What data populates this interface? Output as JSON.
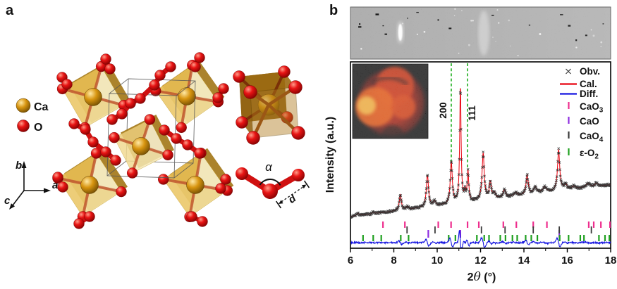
{
  "figure": {
    "panel_a_label": "a",
    "panel_b_label": "b"
  },
  "panel_a": {
    "legend": [
      {
        "name": "Ca",
        "color": "#c8860a"
      },
      {
        "name": "O",
        "color": "#e01010"
      }
    ],
    "axis_labels": {
      "up": "b",
      "right": "a",
      "front": "c"
    },
    "molecule_labels": {
      "angle": "α",
      "bond_length": "d"
    }
  },
  "panel_b": {
    "y_axis_label": "Intensity (a.u.)",
    "x_axis_label": {
      "pre": "2",
      "theta": "θ",
      "post": " (°)"
    },
    "legend": [
      {
        "label": "Obv.",
        "sub": "",
        "marker": "cross",
        "color": "#3a3a3a"
      },
      {
        "label": "Cal.",
        "sub": "",
        "marker": "line",
        "color": "#e8000d"
      },
      {
        "label": "Diff.",
        "sub": "",
        "marker": "line",
        "color": "#1414e0"
      },
      {
        "label": "CaO",
        "sub": "3",
        "marker": "tick",
        "color": "#ee2e8e"
      },
      {
        "label": "CaO",
        "sub": "",
        "marker": "tick",
        "color": "#8e2ee0"
      },
      {
        "label": "CaO",
        "sub": "4",
        "marker": "tick",
        "color": "#3a3a3a"
      },
      {
        "label": "ε-O",
        "sub": "2",
        "marker": "tick",
        "color": "#1fa01f"
      }
    ]
  },
  "chart_data": {
    "type": "line",
    "xlabel": "2θ (°)",
    "ylabel": "Intensity (a.u.)",
    "xlim": [
      6,
      18
    ],
    "x_major_ticks": [
      6,
      8,
      10,
      12,
      14,
      16,
      18
    ],
    "x_minor_ticks": [
      7,
      9,
      11,
      13,
      15,
      17
    ],
    "y_axis": "arbitrary units, no numeric scale shown",
    "series": [
      {
        "name": "Obv.",
        "style": "black x markers",
        "description": "observed powder XRD pattern"
      },
      {
        "name": "Cal.",
        "style": "red solid line",
        "description": "calculated Rietveld pattern"
      },
      {
        "name": "Diff.",
        "style": "blue solid line",
        "description": "difference curve along bottom"
      }
    ],
    "baseline_frac": {
      "at_x6": 0.17,
      "at_x18": 0.34
    },
    "peaks": [
      {
        "two_theta": 6.35,
        "height_frac": 0.012,
        "hwhm": 0.06
      },
      {
        "two_theta": 7.05,
        "height_frac": 0.008,
        "hwhm": 0.06
      },
      {
        "two_theta": 8.3,
        "height_frac": 0.085,
        "hwhm": 0.055
      },
      {
        "two_theta": 8.62,
        "height_frac": 0.015,
        "hwhm": 0.06
      },
      {
        "two_theta": 9.55,
        "height_frac": 0.17,
        "hwhm": 0.06
      },
      {
        "two_theta": 9.88,
        "height_frac": 0.025,
        "hwhm": 0.06
      },
      {
        "two_theta": 10.65,
        "height_frac": 0.225,
        "hwhm": 0.055
      },
      {
        "two_theta": 11.07,
        "height_frac": 0.62,
        "hwhm": 0.038
      },
      {
        "two_theta": 11.28,
        "height_frac": 0.05,
        "hwhm": 0.04
      },
      {
        "two_theta": 11.42,
        "height_frac": 0.16,
        "hwhm": 0.042
      },
      {
        "two_theta": 12.12,
        "height_frac": 0.25,
        "hwhm": 0.06
      },
      {
        "two_theta": 12.45,
        "height_frac": 0.09,
        "hwhm": 0.055
      },
      {
        "two_theta": 12.64,
        "height_frac": 0.03,
        "hwhm": 0.06
      },
      {
        "two_theta": 13.1,
        "height_frac": 0.04,
        "hwhm": 0.07
      },
      {
        "two_theta": 13.62,
        "height_frac": 0.02,
        "hwhm": 0.08
      },
      {
        "two_theta": 14.15,
        "height_frac": 0.105,
        "hwhm": 0.06
      },
      {
        "two_theta": 14.52,
        "height_frac": 0.035,
        "hwhm": 0.08
      },
      {
        "two_theta": 14.95,
        "height_frac": 0.03,
        "hwhm": 0.1
      },
      {
        "two_theta": 15.6,
        "height_frac": 0.22,
        "hwhm": 0.06
      },
      {
        "two_theta": 15.92,
        "height_frac": 0.03,
        "hwhm": 0.08
      },
      {
        "two_theta": 16.3,
        "height_frac": 0.015,
        "hwhm": 0.1
      },
      {
        "two_theta": 16.95,
        "height_frac": 0.02,
        "hwhm": 0.12
      },
      {
        "two_theta": 17.35,
        "height_frac": 0.015,
        "hwhm": 0.1
      }
    ],
    "labeled_reflections": [
      {
        "label": "200",
        "two_theta": 10.65
      },
      {
        "label": "111",
        "two_theta": 11.4
      }
    ],
    "guide_color": "#1fae1f",
    "reflection_tick_rows": [
      {
        "phase": "CaO3",
        "color": "#ee2e8e",
        "two_theta": [
          7.5,
          8.51,
          10.05,
          10.64,
          11.4,
          11.92,
          13.05,
          13.65,
          14.43,
          15.06,
          16.99,
          17.22,
          17.55,
          17.97
        ]
      },
      {
        "phase": "CaO",
        "color": "#8e2ee0",
        "two_theta": [
          9.59,
          11.07,
          15.63
        ]
      },
      {
        "phase": "CaO4",
        "color": "#3a3a3a",
        "two_theta": [
          8.61,
          9.9,
          12.04,
          13.13,
          14.43,
          15.63,
          17.11
        ]
      },
      {
        "phase": "ε-O2",
        "color": "#1fa01f",
        "two_theta": [
          6.58,
          7.05,
          7.42,
          8.32,
          8.68,
          10.53,
          10.84,
          11.83,
          12.17,
          12.39,
          12.91,
          13.15,
          13.47,
          13.69,
          14.08,
          14.34,
          14.62,
          15.65,
          16.06,
          16.6,
          16.77,
          17.46,
          17.74,
          17.94
        ]
      }
    ],
    "detector_strip_lines": [
      {
        "two_theta": 8.3,
        "intensity": 0.7
      },
      {
        "two_theta": 9.55,
        "intensity": 0.75
      },
      {
        "two_theta": 9.9,
        "intensity": 0.25
      },
      {
        "two_theta": 10.66,
        "intensity": 0.9
      },
      {
        "two_theta": 11.07,
        "intensity": 0.95
      },
      {
        "two_theta": 11.42,
        "intensity": 0.6
      },
      {
        "two_theta": 12.15,
        "intensity": 1.0
      },
      {
        "two_theta": 12.95,
        "intensity": 0.3
      },
      {
        "two_theta": 13.6,
        "intensity": 0.18
      },
      {
        "two_theta": 14.12,
        "intensity": 0.4
      },
      {
        "two_theta": 14.8,
        "intensity": 0.3
      },
      {
        "two_theta": 15.62,
        "intensity": 0.8
      },
      {
        "two_theta": 16.3,
        "intensity": 0.18
      },
      {
        "two_theta": 16.95,
        "intensity": 0.25
      },
      {
        "two_theta": 17.3,
        "intensity": 0.3
      },
      {
        "two_theta": 17.9,
        "intensity": 0.22
      }
    ]
  }
}
